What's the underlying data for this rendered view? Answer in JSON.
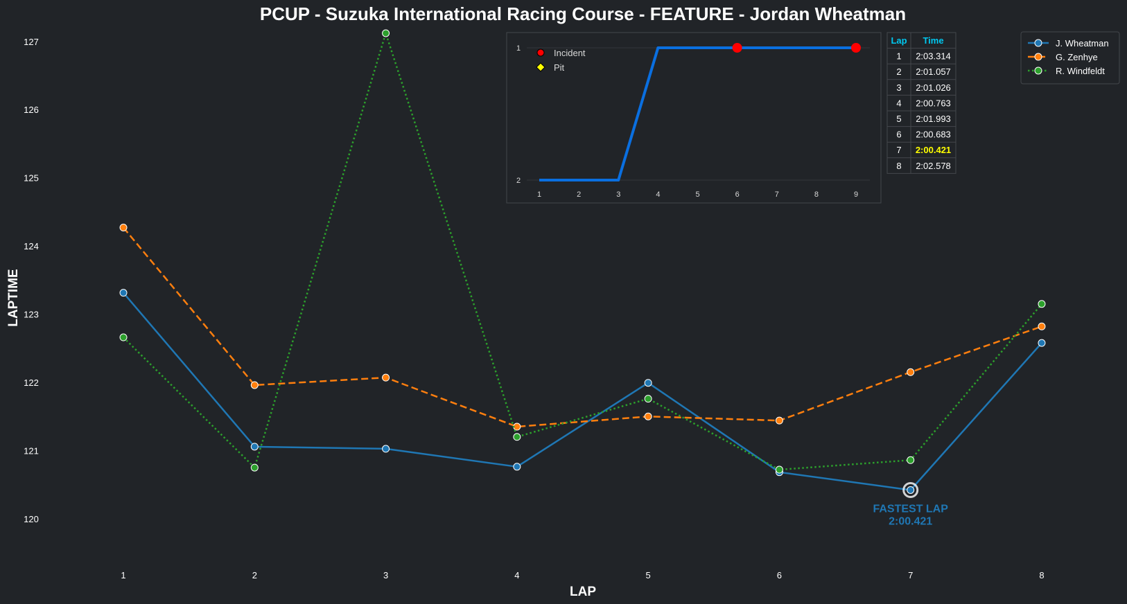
{
  "chart_data": [
    {
      "type": "line",
      "title": "PCUP - Suzuka International Racing Course - FEATURE - Jordan Wheatman",
      "xlabel": "LAP",
      "ylabel": "LAPTIME",
      "x": [
        1,
        2,
        3,
        4,
        5,
        6,
        7,
        8
      ],
      "xlim": [
        0.35,
        8.65
      ],
      "ylim": [
        119.4,
        127.15
      ],
      "yticks": [
        120,
        121,
        122,
        123,
        124,
        125,
        126,
        127
      ],
      "grid": false,
      "legend_position": "top-right",
      "series": [
        {
          "name": "J. Wheatman",
          "color": "#1f77b4",
          "style": "solid",
          "values": [
            123.314,
            121.057,
            121.026,
            120.763,
            121.993,
            120.683,
            120.421,
            122.578
          ]
        },
        {
          "name": "G. Zenhye",
          "color": "#ff7f0e",
          "style": "dashed",
          "values": [
            124.27,
            121.96,
            122.07,
            121.35,
            121.5,
            121.44,
            122.15,
            122.82
          ]
        },
        {
          "name": "R. Windfeldt",
          "color": "#2ca02c",
          "style": "dotted",
          "values": [
            122.66,
            120.75,
            127.12,
            121.2,
            121.76,
            120.72,
            120.86,
            123.15
          ]
        }
      ],
      "annotation": {
        "lines": [
          "FASTEST LAP",
          "2:00.421"
        ],
        "lap": 7,
        "value": 120.421,
        "color": "#1f77b4"
      }
    },
    {
      "type": "line",
      "x": [
        1,
        2,
        3,
        4,
        5,
        6,
        7,
        8,
        9
      ],
      "values": [
        2,
        2,
        2,
        1,
        1,
        1,
        1,
        1,
        1
      ],
      "ylim": [
        2,
        1
      ],
      "yticks": [
        1,
        2
      ],
      "color": "#0a6fe0",
      "legend_position": "top-left",
      "markers": [
        {
          "name": "Incident",
          "shape": "circle",
          "color": "#ff0000",
          "points": [
            [
              6,
              1
            ],
            [
              9,
              1
            ]
          ]
        },
        {
          "name": "Pit",
          "shape": "diamond",
          "color": "#ffff00",
          "points": []
        }
      ]
    },
    {
      "type": "table",
      "columns": [
        "Lap",
        "Time"
      ],
      "rows": [
        [
          "1",
          "2:03.314"
        ],
        [
          "2",
          "2:01.057"
        ],
        [
          "3",
          "2:01.026"
        ],
        [
          "4",
          "2:00.763"
        ],
        [
          "5",
          "2:01.993"
        ],
        [
          "6",
          "2:00.683"
        ],
        [
          "7",
          "2:00.421"
        ],
        [
          "8",
          "2:02.578"
        ]
      ],
      "highlight_row": 6,
      "highlight_color": "#ffff00",
      "header_color": "#00c8f0"
    }
  ]
}
